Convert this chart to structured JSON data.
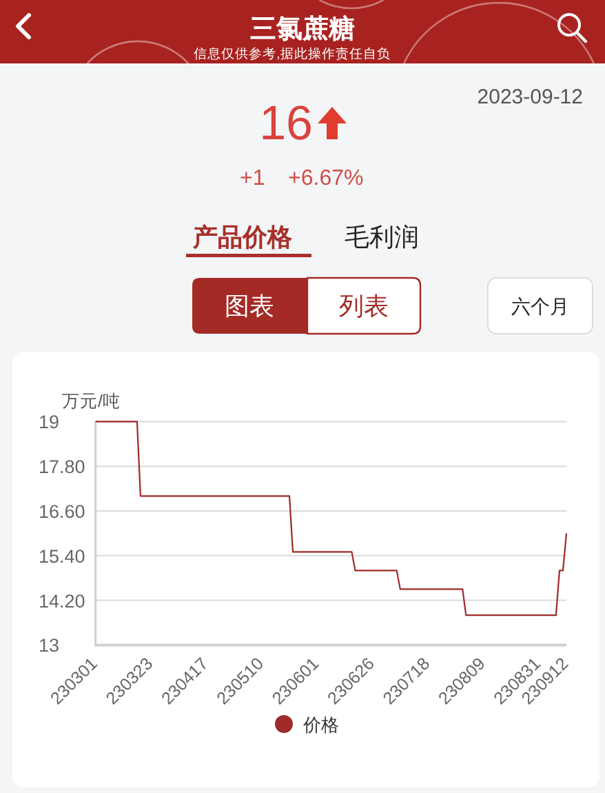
{
  "chart_data": {
    "type": "line",
    "title": "三氯蔗糖",
    "subtitle": "信息仅供参考,据此操作责任自负",
    "ylabel": "万元/吨",
    "annotations": [
      "2023-09-12",
      "16",
      "+1",
      "+6.67%",
      "产品价格",
      "毛利润",
      "图表",
      "列表",
      "六个月"
    ],
    "categories": [
      "230301",
      null,
      null,
      null,
      null,
      null,
      null,
      null,
      null,
      null,
      null,
      null,
      null,
      null,
      null,
      null,
      "230323",
      null,
      null,
      null,
      null,
      null,
      null,
      null,
      null,
      null,
      null,
      null,
      null,
      null,
      null,
      null,
      "230417",
      null,
      null,
      null,
      null,
      null,
      null,
      null,
      null,
      null,
      null,
      null,
      null,
      null,
      null,
      null,
      "230510",
      null,
      null,
      null,
      null,
      null,
      null,
      null,
      null,
      null,
      null,
      null,
      null,
      null,
      null,
      null,
      "230601",
      null,
      null,
      null,
      null,
      null,
      null,
      null,
      null,
      null,
      null,
      null,
      null,
      null,
      null,
      null,
      "230626",
      null,
      null,
      null,
      null,
      null,
      null,
      null,
      null,
      null,
      null,
      null,
      null,
      null,
      null,
      null,
      "230718",
      null,
      null,
      null,
      null,
      null,
      null,
      null,
      null,
      null,
      null,
      null,
      null,
      null,
      null,
      null,
      "230809",
      null,
      null,
      null,
      null,
      null,
      null,
      null,
      null,
      null,
      null,
      null,
      null,
      null,
      null,
      null,
      "230831",
      null,
      null,
      null,
      null,
      null,
      null,
      null,
      "230912"
    ],
    "series": [
      {
        "name": "价格",
        "color": "#9e2b29",
        "values": [
          19,
          19,
          19,
          19,
          19,
          19,
          19,
          19,
          19,
          19,
          19,
          19,
          19,
          17,
          17,
          17,
          17,
          17,
          17,
          17,
          17,
          17,
          17,
          17,
          17,
          17,
          17,
          17,
          17,
          17,
          17,
          17,
          17,
          17,
          17,
          17,
          17,
          17,
          17,
          17,
          17,
          17,
          17,
          17,
          17,
          17,
          17,
          17,
          17,
          17,
          17,
          17,
          17,
          17,
          17,
          17,
          17,
          15.5,
          15.5,
          15.5,
          15.5,
          15.5,
          15.5,
          15.5,
          15.5,
          15.5,
          15.5,
          15.5,
          15.5,
          15.5,
          15.5,
          15.5,
          15.5,
          15.5,
          15.5,
          15,
          15,
          15,
          15,
          15,
          15,
          15,
          15,
          15,
          15,
          15,
          15,
          15,
          14.5,
          14.5,
          14.5,
          14.5,
          14.5,
          14.5,
          14.5,
          14.5,
          14.5,
          14.5,
          14.5,
          14.5,
          14.5,
          14.5,
          14.5,
          14.5,
          14.5,
          14.5,
          14.5,
          13.8,
          13.8,
          13.8,
          13.8,
          13.8,
          13.8,
          13.8,
          13.8,
          13.8,
          13.8,
          13.8,
          13.8,
          13.8,
          13.8,
          13.8,
          13.8,
          13.8,
          13.8,
          13.8,
          13.8,
          13.8,
          13.8,
          13.8,
          13.8,
          13.8,
          13.8,
          13.8,
          15,
          15,
          16
        ]
      }
    ],
    "ylim": [
      13,
      19
    ],
    "yticks": [
      13,
      {
        "value": 14.2,
        "label": "14.20"
      },
      {
        "value": 15.4,
        "label": "15.40"
      },
      {
        "value": 16.6,
        "label": "16.60"
      },
      {
        "value": 17.8,
        "label": "17.80"
      },
      19
    ],
    "grid": "y",
    "legend": "bottom"
  }
}
